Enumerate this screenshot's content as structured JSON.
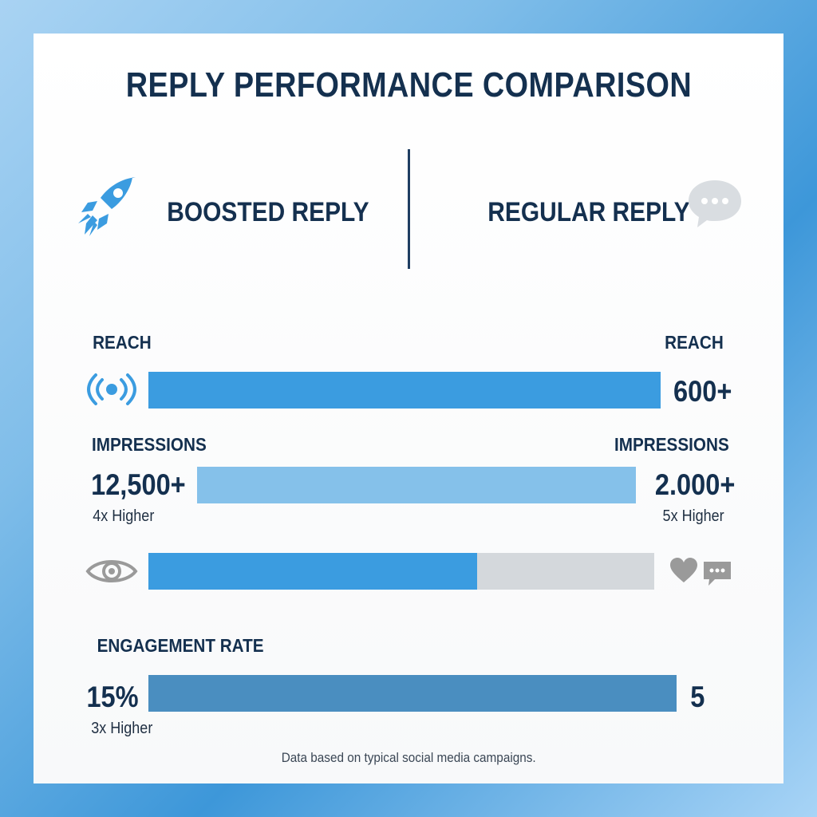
{
  "title": "REPLY PERFORMANCE COMPARISON",
  "left_header": "BOOSTED REPLY",
  "right_header": "REGULAR REPLY",
  "footer": "Data based on typical social media campaigns.",
  "colors": {
    "primary_blue": "#3b9ce0",
    "light_blue": "#85c1ea",
    "engagement_blue": "#4a8ec0",
    "neutral_gray": "#d4d8dc",
    "navy_text": "#14304f",
    "icon_gray": "#9a9a9a"
  },
  "icons": [
    "rocket-icon",
    "chat-bubble-icon",
    "broadcast-icon",
    "eye-icon",
    "heart-icon",
    "comment-icon"
  ],
  "chart_data": {
    "type": "bar",
    "rows": [
      {
        "metric": "reach",
        "left_label": "REACH",
        "right_label": "REACH",
        "right_value": "600+"
      },
      {
        "metric": "impressions",
        "left_label": "IMPRESSIONS",
        "right_label": "IMPRESSIONS",
        "left_value": "12,500+",
        "left_note": "4x Higher",
        "right_value": "2.000+",
        "right_note": "5x Higher"
      },
      {
        "metric": "views",
        "fill_fraction": 0.65
      },
      {
        "metric": "engagement",
        "left_label": "ENGAGEMENT RATE",
        "left_value": "15%",
        "left_note": "3x Higher",
        "right_value": "5"
      }
    ]
  }
}
